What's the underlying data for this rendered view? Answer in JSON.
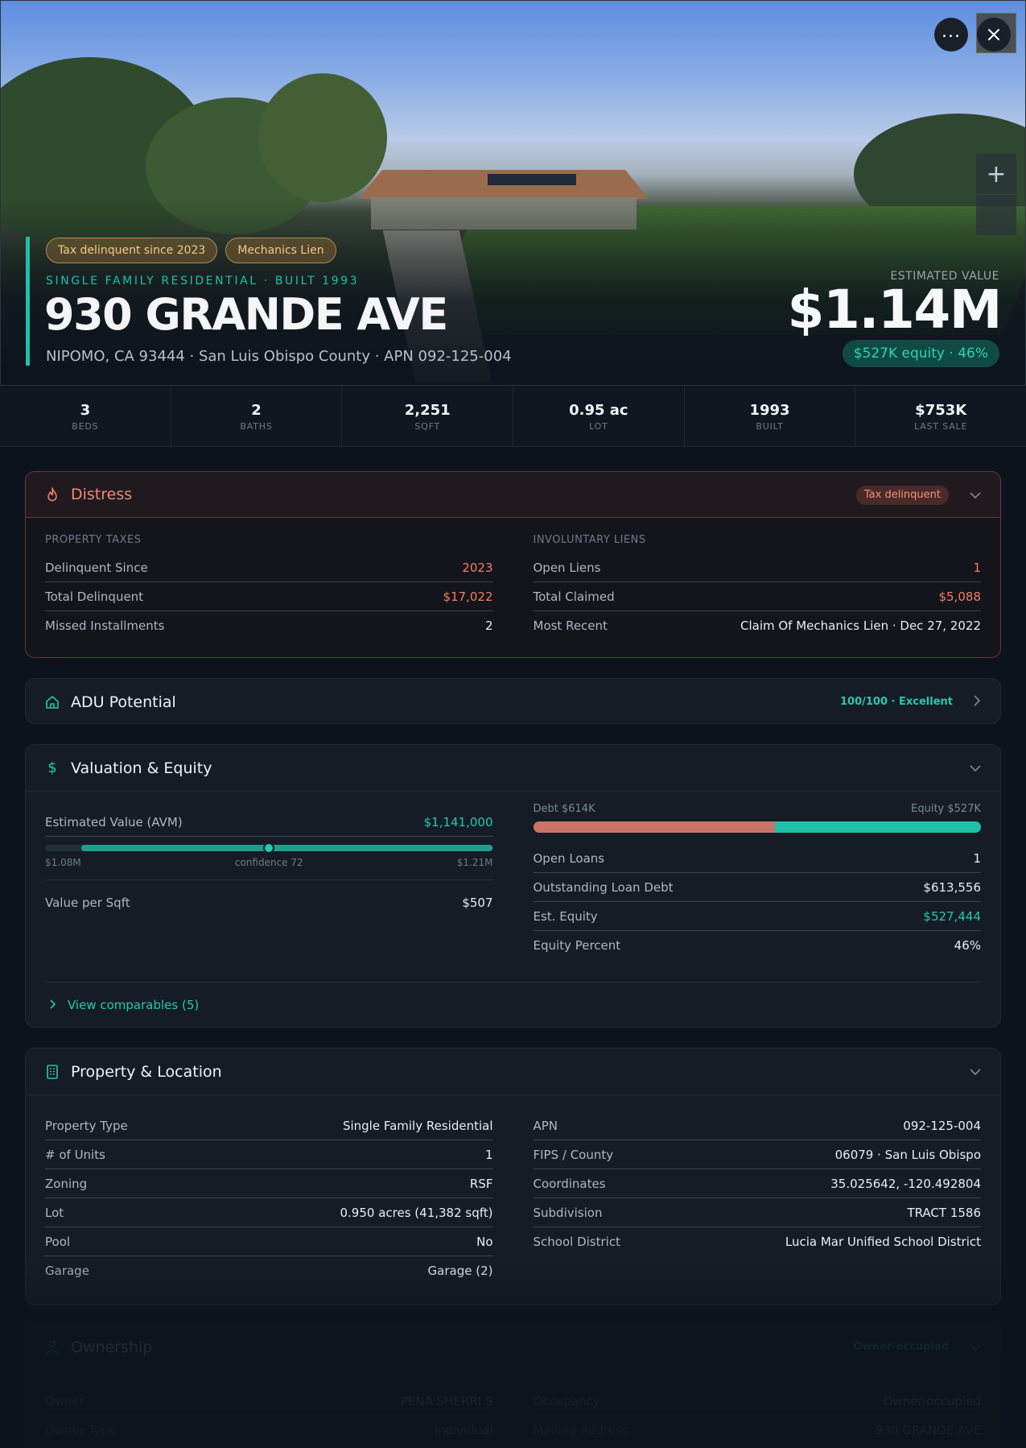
{
  "hero": {
    "chips": [
      "Tax delinquent since 2023",
      "Mechanics Lien"
    ],
    "subtype": "SINGLE FAMILY RESIDENTIAL · BUILT 1993",
    "address": "930 GRANDE AVE",
    "location": "NIPOMO, CA 93444 · San Luis Obispo County · APN 092-125-004",
    "estimated_label": "ESTIMATED VALUE",
    "estimated_value": "$1.14M",
    "equity_chip": "$527K equity · 46%",
    "more_icon": "ellipsis-icon",
    "close_icon": "close-icon",
    "zoom_in": "+"
  },
  "stats": [
    {
      "value": "3",
      "label": "BEDS"
    },
    {
      "value": "2",
      "label": "BATHS"
    },
    {
      "value": "2,251",
      "label": "SQFT"
    },
    {
      "value": "0.95 ac",
      "label": "LOT"
    },
    {
      "value": "1993",
      "label": "BUILT"
    },
    {
      "value": "$753K",
      "label": "LAST SALE"
    }
  ],
  "distress": {
    "title": "Distress",
    "badge": "Tax delinquent",
    "left_label": "PROPERTY TAXES",
    "left": [
      {
        "k": "Delinquent Since",
        "v": "2023"
      },
      {
        "k": "Total Delinquent",
        "v": "$17,022"
      },
      {
        "k": "Missed Installments",
        "v": "2"
      }
    ],
    "right_label": "INVOLUNTARY LIENS",
    "right": [
      {
        "k": "Open Liens",
        "v": "1"
      },
      {
        "k": "Total Claimed",
        "v": "$5,088"
      },
      {
        "k": "Most Recent",
        "v": "Claim Of Mechanics Lien · Dec 27, 2022"
      }
    ]
  },
  "adu": {
    "title": "ADU Potential",
    "score": "100/100 · Excellent"
  },
  "valuation": {
    "title": "Valuation & Equity",
    "avm_label": "Estimated Value (AVM)",
    "avm_value": "$1,141,000",
    "range_low": "$1.08M",
    "confidence": "confidence 72",
    "range_high": "$1.21M",
    "per_sqft_label": "Value per Sqft",
    "per_sqft_value": "$507",
    "debt_label": "Debt $614K",
    "equity_label": "Equity $527K",
    "debt_fraction": 0.54,
    "right": [
      {
        "k": "Open Loans",
        "v": "1"
      },
      {
        "k": "Outstanding Loan Debt",
        "v": "$613,556"
      },
      {
        "k": "Est. Equity",
        "v": "$527,444"
      },
      {
        "k": "Equity Percent",
        "v": "46%"
      }
    ],
    "comparables": "View comparables (5)"
  },
  "property": {
    "title": "Property & Location",
    "left": [
      {
        "k": "Property Type",
        "v": "Single Family Residential"
      },
      {
        "k": "# of Units",
        "v": "1"
      },
      {
        "k": "Zoning",
        "v": "RSF"
      },
      {
        "k": "Lot",
        "v": "0.950 acres (41,382 sqft)"
      },
      {
        "k": "Pool",
        "v": "No"
      },
      {
        "k": "Garage",
        "v": "Garage (2)"
      }
    ],
    "right": [
      {
        "k": "APN",
        "v": "092-125-004"
      },
      {
        "k": "FIPS / County",
        "v": "06079 · San Luis Obispo"
      },
      {
        "k": "Coordinates",
        "v": "35.025642, -120.492804"
      },
      {
        "k": "Subdivision",
        "v": "TRACT 1586"
      },
      {
        "k": "School District",
        "v": "Lucia Mar Unified School District"
      }
    ]
  },
  "ownership": {
    "title": "Ownership",
    "badge": "Owner-occupied",
    "left": [
      {
        "k": "Owner",
        "v": "PENA SHERRI S"
      },
      {
        "k": "Owner Type",
        "v": "Individual"
      }
    ],
    "right": [
      {
        "k": "Occupancy",
        "v": "Owner-occupied"
      },
      {
        "k": "Mailing Address",
        "v": "930 GRANDE AVE"
      }
    ]
  },
  "colors": {
    "accent": "#1fc0a8",
    "distress": "#f07f66",
    "debt": "#c97466"
  }
}
